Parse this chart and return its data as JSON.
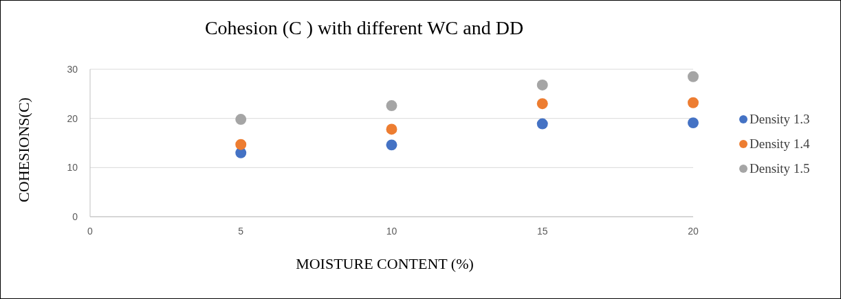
{
  "chart_data": {
    "type": "scatter",
    "title": "Cohesion  (C ) with different WC and DD",
    "xlabel": "MOISTURE CONTENT (%)",
    "ylabel": "COHESIONS(C)",
    "x": [
      5,
      10,
      15,
      20
    ],
    "series": [
      {
        "name": "Density 1.3",
        "color": "#4472c4",
        "values": [
          13.0,
          14.6,
          18.9,
          19.1
        ]
      },
      {
        "name": "Density 1.4",
        "color": "#ed7d31",
        "values": [
          14.7,
          17.8,
          23.0,
          23.2
        ]
      },
      {
        "name": "Density 1.5",
        "color": "#a5a5a5",
        "values": [
          19.8,
          22.6,
          26.8,
          28.5
        ]
      }
    ],
    "xlim": [
      0,
      20
    ],
    "xticks": [
      0,
      5,
      10,
      15,
      20
    ],
    "ylim": [
      0,
      30
    ],
    "yticks": [
      0,
      10,
      20,
      30
    ],
    "grid": "y",
    "legend": "right",
    "marker": "circle"
  }
}
